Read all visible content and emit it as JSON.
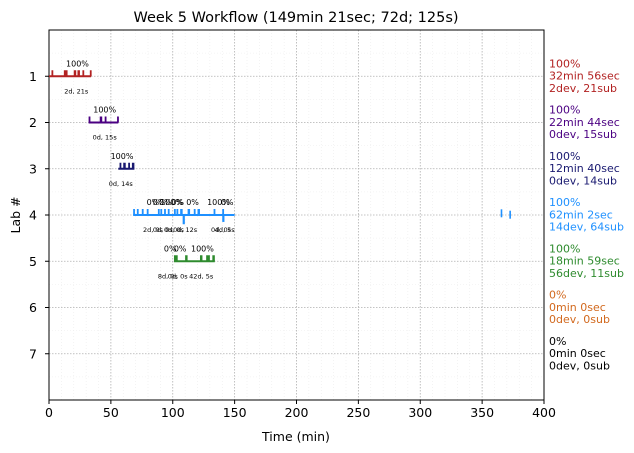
{
  "chart_data": {
    "type": "timeline",
    "title": "Week 5 Workflow (149min 21sec; 72d; 125s)",
    "xlabel": "Time (min)",
    "ylabel": "Lab #",
    "xlim": [
      0,
      400
    ],
    "ylim": [
      0,
      8
    ],
    "y_inverted": true,
    "grid": true,
    "xticks": [
      0,
      50,
      100,
      150,
      200,
      250,
      300,
      350,
      400
    ],
    "yticks": [
      1,
      2,
      3,
      4,
      5,
      6,
      7
    ],
    "labs": [
      {
        "lab": 1,
        "color": "#b22222",
        "bar": [
          0,
          34
        ],
        "marks": [
          [
            2,
            3
          ],
          [
            12,
            15
          ],
          [
            20,
            22
          ],
          [
            23,
            25
          ],
          [
            27,
            28
          ],
          [
            33,
            34
          ]
        ],
        "annotations": [
          {
            "x": 23,
            "text": "100%"
          }
        ],
        "below": [
          {
            "x": 22,
            "text": "2d, 21s"
          }
        ],
        "summary": [
          "100%",
          "32min 56sec",
          "2dev, 21sub"
        ]
      },
      {
        "lab": 2,
        "color": "#4b0082",
        "bar": [
          32,
          56
        ],
        "marks": [
          [
            32,
            33
          ],
          [
            41,
            43
          ],
          [
            45,
            46
          ],
          [
            55,
            56
          ]
        ],
        "annotations": [
          {
            "x": 45,
            "text": "100%"
          }
        ],
        "below": [
          {
            "x": 45,
            "text": "0d, 15s"
          }
        ],
        "summary": [
          "100%",
          "22min 44sec",
          "0dev, 15sub"
        ]
      },
      {
        "lab": 3,
        "color": "#191970",
        "bar": [
          56,
          69
        ],
        "marks": [
          [
            57,
            58
          ],
          [
            60,
            62
          ],
          [
            64,
            65
          ],
          [
            67,
            69
          ]
        ],
        "annotations": [
          {
            "x": 59,
            "text": "100%"
          }
        ],
        "below": [
          {
            "x": 58,
            "text": "0d, 14s"
          }
        ],
        "summary": [
          "100%",
          "12min 40sec",
          "0dev, 14sub"
        ]
      },
      {
        "lab": 4,
        "color": "#1e90ff",
        "bar": [
          68,
          150
        ],
        "marks": [
          [
            68,
            69
          ],
          [
            71,
            72
          ],
          [
            75,
            76
          ],
          [
            79,
            80
          ],
          [
            88,
            89
          ],
          [
            90,
            91
          ],
          [
            93,
            94
          ],
          [
            96,
            97
          ],
          [
            101,
            102
          ],
          [
            103,
            104
          ],
          [
            106,
            108
          ],
          [
            112,
            114
          ],
          [
            117,
            118
          ],
          [
            120,
            122
          ],
          [
            133,
            134
          ],
          [
            140,
            141
          ]
        ],
        "drops": [
          [
            108,
            4.2
          ],
          [
            140,
            4.15
          ]
        ],
        "annotations": [
          {
            "x": 84,
            "text": "0%"
          },
          {
            "x": 89,
            "text": "0%"
          },
          {
            "x": 94,
            "text": "0%"
          },
          {
            "x": 99,
            "text": "100%"
          },
          {
            "x": 104,
            "text": "0%"
          },
          {
            "x": 116,
            "text": "0%"
          },
          {
            "x": 137,
            "text": "100%"
          },
          {
            "x": 144,
            "text": "0%"
          }
        ],
        "below": [
          {
            "x": 84,
            "text": "2d, 0s"
          },
          {
            "x": 92,
            "text": "0d, 0s"
          },
          {
            "x": 101,
            "text": "0d, 0s"
          },
          {
            "x": 110,
            "text": "0d, 12s"
          },
          {
            "x": 139,
            "text": "0d, 0s"
          },
          {
            "x": 142,
            "text": "4d, 5s"
          }
        ],
        "extra_marks": [
          [
            365,
            365.8,
            4.05
          ],
          [
            372,
            372.8,
            4.08
          ]
        ],
        "summary": [
          "100%",
          "62min 2sec",
          "14dev, 64sub"
        ]
      },
      {
        "lab": 5,
        "color": "#2e8b2e",
        "bar": [
          101,
          134
        ],
        "marks": [
          [
            101,
            104
          ],
          [
            110,
            112
          ],
          [
            122,
            124
          ],
          [
            127,
            130
          ],
          [
            132,
            134
          ]
        ],
        "annotations": [
          {
            "x": 98,
            "text": "0%"
          },
          {
            "x": 106,
            "text": "0%"
          },
          {
            "x": 124,
            "text": "100%"
          }
        ],
        "below": [
          {
            "x": 96,
            "text": "8d, 0s"
          },
          {
            "x": 104,
            "text": "0d, 0s"
          },
          {
            "x": 123,
            "text": "42d, 5s"
          }
        ],
        "summary": [
          "100%",
          "18min 59sec",
          "56dev, 11sub"
        ]
      },
      {
        "lab": 6,
        "color": "#d2691e",
        "bar": null,
        "marks": [],
        "annotations": [],
        "below": [],
        "summary": [
          "0%",
          "0min 0sec",
          "0dev, 0sub"
        ]
      },
      {
        "lab": 7,
        "color": "#000000",
        "bar": null,
        "marks": [],
        "annotations": [],
        "below": [],
        "summary": [
          "0%",
          "0min 0sec",
          "0dev, 0sub"
        ]
      }
    ]
  }
}
